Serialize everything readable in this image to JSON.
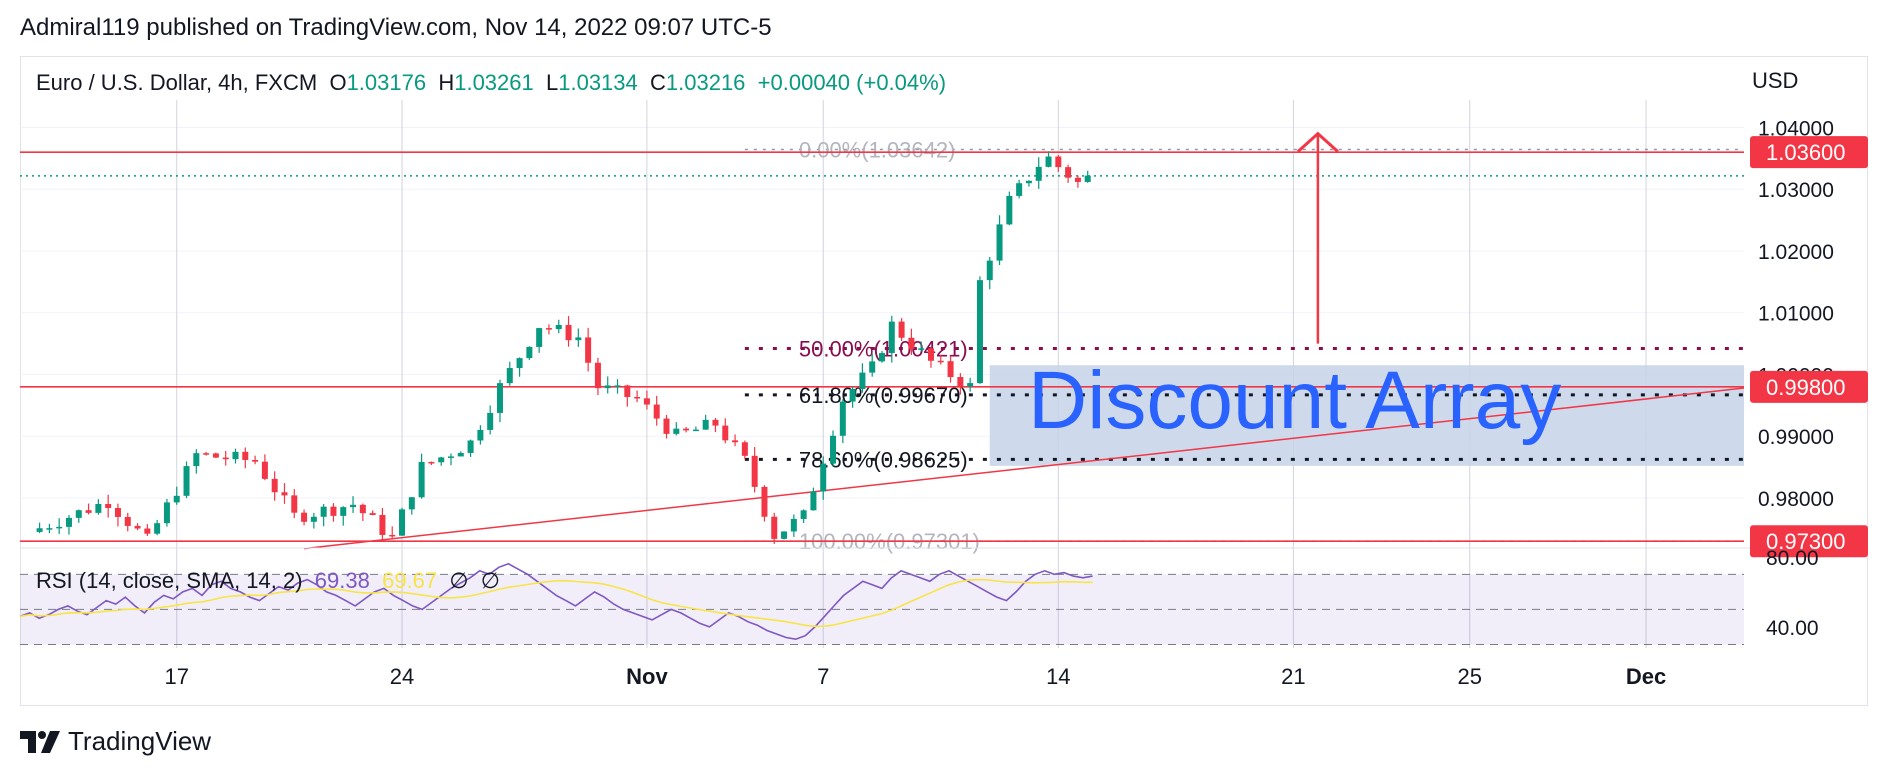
{
  "header": {
    "published_text": "Admiral119 published on TradingView.com, Nov 14, 2022 09:07 UTC-5"
  },
  "legend": {
    "symbol_text": "Euro / U.S. Dollar, 4h, FXCM",
    "o_label": "O",
    "o_value": "1.03176",
    "h_label": "H",
    "h_value": "1.03261",
    "l_label": "L",
    "l_value": "1.03134",
    "c_label": "C",
    "c_value": "1.03216",
    "change": "+0.00040 (+0.04%)"
  },
  "rsi_legend": {
    "label": "RSI (14, close, SMA, 14, 2)",
    "rsi_value": "69.38",
    "sma_value": "69.67",
    "extra1": "∅",
    "extra2": "∅"
  },
  "annotation": {
    "discount_text": "Discount Array"
  },
  "footer": {
    "brand": "TradingView"
  },
  "colors": {
    "up": "#089981",
    "down": "#f23645",
    "red_line": "#f23645",
    "fib_dark_red": "#880e4f",
    "rsi_line": "#7e57c2",
    "rsi_sma": "#f7e448",
    "box_fill": "#c5d3e8",
    "discount_text": "#2962ff",
    "grid": "#f0f3fa"
  },
  "chart_data": {
    "type": "candlestick",
    "currency_label": "USD",
    "y_ticks": [
      "1.04000",
      "1.03000",
      "1.02000",
      "1.01000",
      "1.00000",
      "0.99000",
      "0.98000"
    ],
    "y_tick_values": [
      1.04,
      1.03,
      1.02,
      1.01,
      1.0,
      0.99,
      0.98
    ],
    "ylim": [
      0.9719,
      1.0425
    ],
    "x_ticks": [
      "17",
      "24",
      "Nov",
      "7",
      "14",
      "21",
      "25",
      "Dec"
    ],
    "x_tick_positions": [
      -96,
      -50,
      0,
      36,
      84,
      132,
      168,
      204
    ],
    "xlim": [
      -128,
      224
    ],
    "x_unit": "hours since Nov 1 00:00",
    "horizontal_levels": [
      {
        "label": "1.03600",
        "value": 1.036
      },
      {
        "label": "0.99800",
        "value": 0.998
      },
      {
        "label": "0.97300",
        "value": 0.973
      }
    ],
    "last_price": 1.03216,
    "fib_levels": [
      {
        "label": "0.00%(1.03642)",
        "value": 1.03642,
        "style": "faint"
      },
      {
        "label": "50.00%(1.00421)",
        "value": 1.00421,
        "style": "dark-red"
      },
      {
        "label": "61.80%(0.99670)",
        "value": 0.9967,
        "style": "black"
      },
      {
        "label": "78.60%(0.98625)",
        "value": 0.98625,
        "style": "black"
      },
      {
        "label": "100.00%(0.97301)",
        "value": 0.97301,
        "style": "faint"
      }
    ],
    "fib_x_start": 20,
    "trendline": {
      "x1": -70,
      "y1": 0.9718,
      "x2": 224,
      "y2": 0.9978
    },
    "discount_box": {
      "x1": 70,
      "x2": 224,
      "y_top": 1.0015,
      "y_bottom": 0.9852
    },
    "arrow": {
      "x": 137,
      "y_from": 1.005,
      "y_to": 1.039
    },
    "rsi": {
      "y_ticks": [
        "80.00",
        "40.00"
      ],
      "y_tick_values": [
        80,
        40
      ],
      "ylim": [
        28,
        85
      ],
      "band": [
        30,
        70
      ],
      "middle": 50,
      "values": [
        46,
        48,
        45,
        47,
        50,
        52,
        49,
        47,
        51,
        55,
        53,
        57,
        52,
        48,
        54,
        58,
        56,
        60,
        62,
        58,
        64,
        66,
        62,
        60,
        57,
        55,
        59,
        63,
        61,
        65,
        67,
        64,
        60,
        58,
        55,
        52,
        56,
        60,
        62,
        58,
        55,
        52,
        50,
        54,
        58,
        62,
        65,
        68,
        72,
        70,
        74,
        76,
        73,
        70,
        66,
        62,
        58,
        55,
        52,
        56,
        60,
        57,
        53,
        50,
        48,
        46,
        44,
        47,
        50,
        48,
        45,
        42,
        40,
        44,
        48,
        46,
        43,
        41,
        38,
        36,
        34,
        33,
        35,
        40,
        46,
        52,
        58,
        62,
        66,
        64,
        62,
        68,
        72,
        70,
        68,
        66,
        70,
        72,
        69,
        66,
        63,
        60,
        57,
        55,
        60,
        66,
        70,
        72,
        70,
        71,
        69,
        68,
        69
      ]
    }
  }
}
